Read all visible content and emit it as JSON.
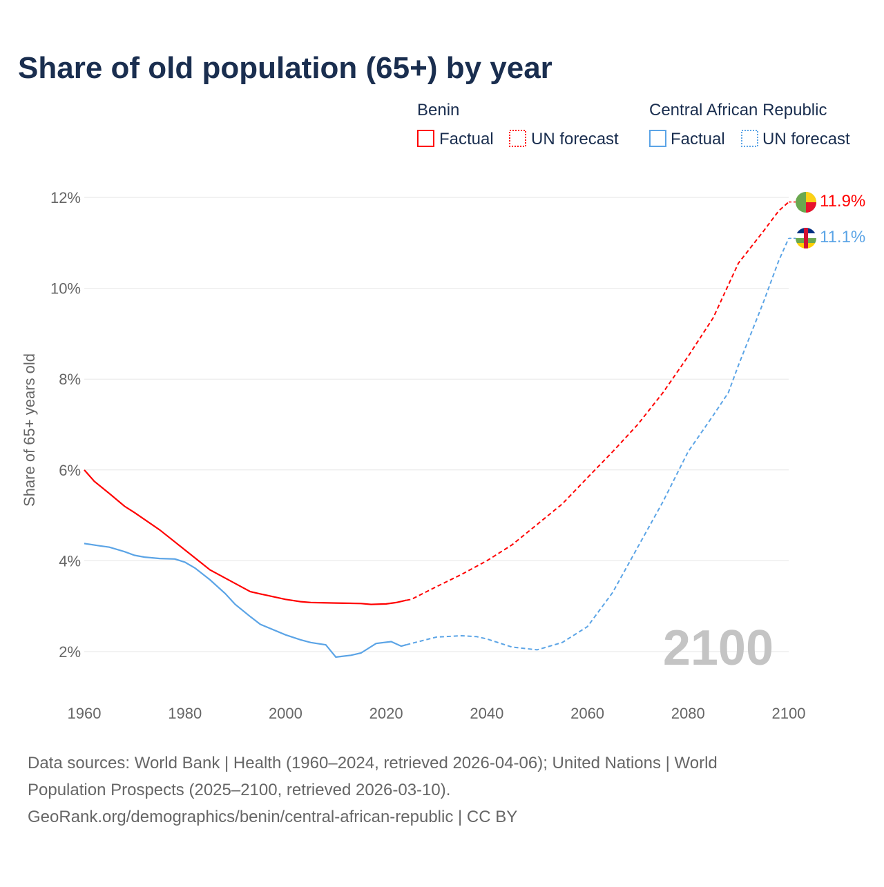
{
  "chart_data": {
    "type": "line",
    "title": "Share of old population (65+) by year",
    "ylabel": "Share of 65+ years old",
    "xlabel": "",
    "xlim": [
      1960,
      2100
    ],
    "ylim": [
      1.3,
      12.3
    ],
    "x_ticks": [
      "1960",
      "1980",
      "2000",
      "2020",
      "2040",
      "2060",
      "2080",
      "2100"
    ],
    "x_tick_values": [
      1960,
      1980,
      2000,
      2020,
      2040,
      2060,
      2080,
      2100
    ],
    "y_ticks": [
      "2%",
      "4%",
      "6%",
      "8%",
      "10%",
      "12%"
    ],
    "y_tick_values": [
      2,
      4,
      6,
      8,
      10,
      12
    ],
    "grid": true,
    "year_watermark": "2100",
    "legend": {
      "placement": "top-right",
      "groups": [
        {
          "name": "Benin",
          "items": [
            "Factual",
            "UN forecast"
          ]
        },
        {
          "name": "Central African Republic",
          "items": [
            "Factual",
            "UN forecast"
          ]
        }
      ]
    },
    "series": [
      {
        "name": "Benin",
        "color": "#ff0000",
        "end_label": "11.9%",
        "factual": {
          "x": [
            1960,
            1962,
            1965,
            1968,
            1970,
            1975,
            1980,
            1985,
            1990,
            1993,
            1995,
            2000,
            2003,
            2005,
            2010,
            2015,
            2017,
            2020,
            2022,
            2024
          ],
          "y": [
            6.0,
            5.75,
            5.48,
            5.2,
            5.06,
            4.68,
            4.24,
            3.8,
            3.5,
            3.32,
            3.27,
            3.15,
            3.1,
            3.08,
            3.07,
            3.06,
            3.04,
            3.05,
            3.08,
            3.13
          ]
        },
        "forecast": {
          "x": [
            2025,
            2030,
            2035,
            2040,
            2045,
            2050,
            2055,
            2060,
            2065,
            2070,
            2075,
            2080,
            2085,
            2090,
            2095,
            2098,
            2100
          ],
          "y": [
            3.15,
            3.43,
            3.7,
            4.0,
            4.35,
            4.8,
            5.25,
            5.83,
            6.4,
            7.0,
            7.7,
            8.5,
            9.35,
            10.55,
            11.26,
            11.7,
            11.9
          ]
        }
      },
      {
        "name": "Central African Republic",
        "color": "#5ba4e6",
        "end_label": "11.1%",
        "factual": {
          "x": [
            1960,
            1963,
            1965,
            1968,
            1970,
            1972,
            1975,
            1978,
            1980,
            1982,
            1985,
            1988,
            1990,
            1993,
            1995,
            2000,
            2003,
            2005,
            2008,
            2010,
            2013,
            2015,
            2018,
            2021,
            2023,
            2024
          ],
          "y": [
            4.38,
            4.33,
            4.3,
            4.2,
            4.12,
            4.08,
            4.05,
            4.04,
            3.97,
            3.84,
            3.58,
            3.28,
            3.04,
            2.77,
            2.6,
            2.37,
            2.26,
            2.2,
            2.15,
            1.88,
            1.92,
            1.97,
            2.18,
            2.22,
            2.12,
            2.15
          ]
        },
        "forecast": {
          "x": [
            2025,
            2030,
            2035,
            2038,
            2040,
            2045,
            2050,
            2055,
            2060,
            2065,
            2070,
            2075,
            2080,
            2085,
            2088,
            2090,
            2095,
            2098,
            2100
          ],
          "y": [
            2.18,
            2.32,
            2.35,
            2.33,
            2.28,
            2.1,
            2.04,
            2.2,
            2.55,
            3.3,
            4.3,
            5.3,
            6.4,
            7.2,
            7.7,
            8.3,
            9.7,
            10.6,
            11.1
          ]
        }
      }
    ],
    "source_lines": [
      "Data sources: World Bank | Health (1960–2024, retrieved 2026-04-06); United Nations | World",
      "Population Prospects (2025–2100, retrieved 2026-03-10).",
      "GeoRank.org/demographics/benin/central-african-republic | CC BY"
    ]
  }
}
